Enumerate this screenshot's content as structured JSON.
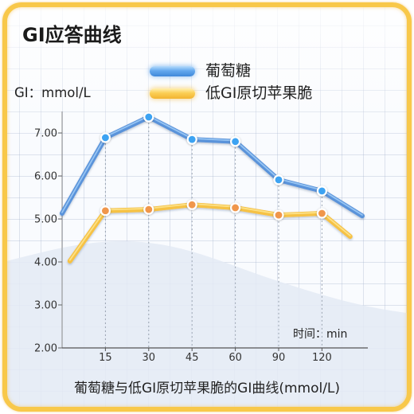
{
  "chart_data": {
    "type": "line",
    "title": "GI应答曲线",
    "ylabel": "GI：mmol/L",
    "xlabel": "时间：min",
    "caption": "葡萄糖与低GI原切苹果脆的GI曲线(mmol/L)",
    "x": [
      "",
      "15",
      "30",
      "45",
      "60",
      "90",
      "120",
      ""
    ],
    "yticks": [
      "2.00",
      "3.00",
      "4.00",
      "5.00",
      "6.00",
      "7.00"
    ],
    "ylim": [
      2,
      7.5
    ],
    "grid": true,
    "legend": "top-center",
    "series": [
      {
        "name": "葡萄糖",
        "values": [
          5.13,
          6.89,
          7.37,
          6.85,
          6.8,
          5.91,
          5.65,
          5.07
        ],
        "color": "#5a93da",
        "highlight_color": "#9ccaf5",
        "point_color": "#3ea3f2"
      },
      {
        "name": "低GI原切苹果脆",
        "values": [
          4.02,
          5.19,
          5.22,
          5.33,
          5.26,
          5.09,
          5.13,
          4.59
        ],
        "color": "#f6c244",
        "highlight_color": "#fde48e",
        "point_color": "#f0964b"
      }
    ]
  }
}
